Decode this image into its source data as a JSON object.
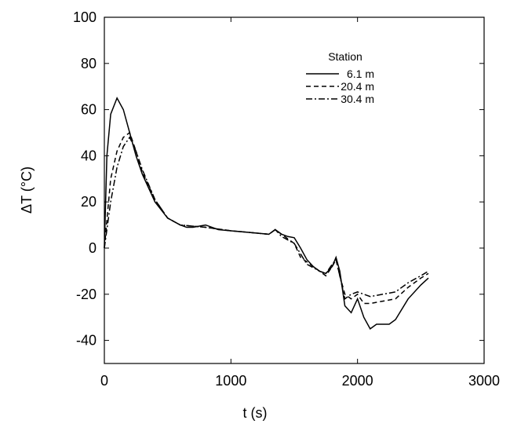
{
  "chart_data": {
    "type": "line",
    "x_label": "t (s)",
    "y_label": "ΔT (°C)",
    "legend_title": "Station",
    "legend": "upper right",
    "xlim": [
      0,
      3000
    ],
    "xticks": [
      0,
      1000,
      2000,
      3000
    ],
    "ylim": [
      -50,
      100
    ],
    "yticks": [
      -40,
      -20,
      0,
      20,
      40,
      60,
      80,
      100
    ],
    "series": [
      {
        "name": "6.1 m",
        "color": "#000000",
        "dash": "solid",
        "x": [
          0,
          20,
          50,
          100,
          150,
          200,
          250,
          300,
          400,
          500,
          600,
          650,
          700,
          800,
          900,
          1000,
          1100,
          1200,
          1300,
          1350,
          1400,
          1450,
          1500,
          1550,
          1600,
          1650,
          1700,
          1750,
          1800,
          1830,
          1860,
          1900,
          1950,
          2000,
          2050,
          2100,
          2150,
          2200,
          2250,
          2300,
          2400,
          2500,
          2560
        ],
        "values": [
          0,
          40,
          58,
          65,
          60,
          50,
          40,
          32,
          20,
          13,
          10,
          9,
          9,
          10,
          8,
          7.5,
          7,
          6.5,
          6,
          8,
          6,
          5,
          4.5,
          0,
          -5,
          -8,
          -10,
          -11,
          -8,
          -4,
          -10,
          -25,
          -28,
          -22,
          -30,
          -35,
          -33,
          -33,
          -33,
          -31,
          -22,
          -16,
          -13
        ]
      },
      {
        "name": "20.4 m",
        "color": "#000000",
        "dash": "dashed",
        "x": [
          0,
          50,
          100,
          150,
          200,
          250,
          300,
          400,
          500,
          600,
          700,
          800,
          1000,
          1200,
          1300,
          1350,
          1400,
          1500,
          1550,
          1600,
          1700,
          1750,
          1800,
          1830,
          1860,
          1900,
          1950,
          2000,
          2050,
          2100,
          2200,
          2300,
          2400,
          2500,
          2560
        ],
        "values": [
          0,
          30,
          42,
          48,
          50,
          42,
          33,
          21,
          13,
          10,
          9.5,
          9,
          7.5,
          6.5,
          6,
          8,
          6,
          2,
          -4,
          -6,
          -10,
          -12,
          -8,
          -5,
          -12,
          -20,
          -22,
          -20,
          -24,
          -24,
          -23,
          -22,
          -17,
          -13,
          -11
        ]
      },
      {
        "name": "30.4 m",
        "color": "#000000",
        "dash": "dashdot",
        "x": [
          0,
          50,
          100,
          150,
          200,
          250,
          300,
          400,
          500,
          600,
          700,
          800,
          1000,
          1200,
          1300,
          1350,
          1400,
          1500,
          1600,
          1700,
          1750,
          1800,
          1830,
          1860,
          1900,
          1950,
          2000,
          2100,
          2200,
          2300,
          2400,
          2500,
          2560
        ],
        "values": [
          0,
          20,
          35,
          44,
          48,
          42,
          34,
          21,
          13,
          10,
          9.5,
          9,
          7.5,
          6.5,
          6,
          8,
          5,
          2,
          -7,
          -10,
          -11,
          -7,
          -5,
          -12,
          -22,
          -20,
          -19,
          -21,
          -20,
          -19,
          -15,
          -12,
          -10
        ]
      }
    ]
  }
}
